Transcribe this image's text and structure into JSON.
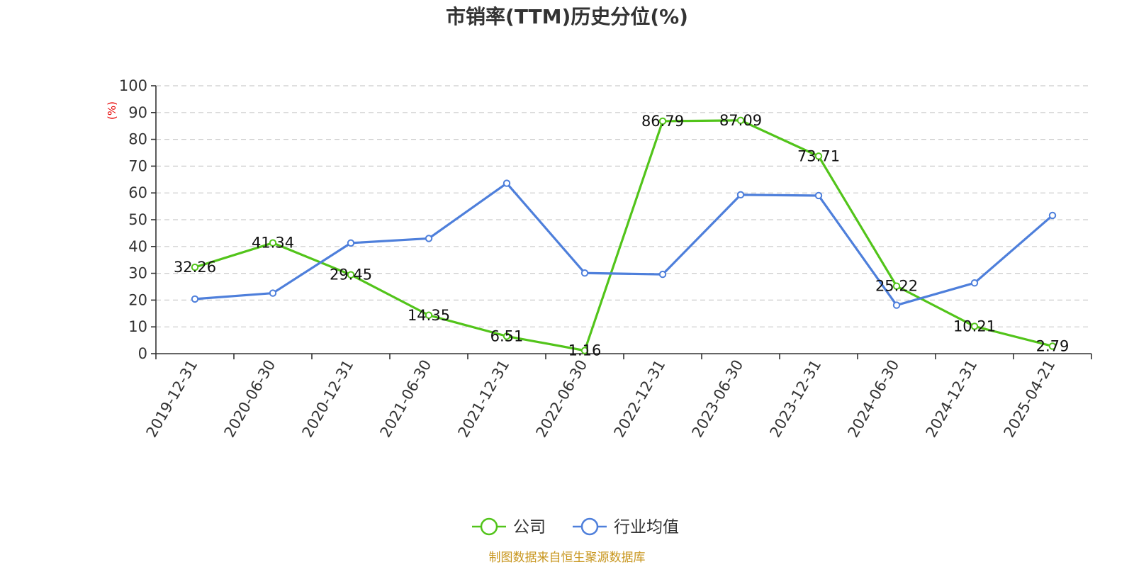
{
  "chart_data": {
    "type": "line",
    "title": "市销率(TTM)历史分位(%)",
    "ylabel": "(%)",
    "xlabel": "",
    "ylim": [
      0,
      100
    ],
    "yticks": [
      0,
      10,
      20,
      30,
      40,
      50,
      60,
      70,
      80,
      90,
      100
    ],
    "grid": true,
    "legend_position": "bottom-center",
    "categories": [
      "2019-12-31",
      "2020-06-30",
      "2020-12-31",
      "2021-06-30",
      "2021-12-31",
      "2022-06-30",
      "2022-12-31",
      "2023-06-30",
      "2023-12-31",
      "2024-06-30",
      "2024-12-31",
      "2025-04-21"
    ],
    "series": [
      {
        "name": "公司",
        "color": "#52c41a",
        "values": [
          32.26,
          41.34,
          29.45,
          14.35,
          6.51,
          1.16,
          86.79,
          87.09,
          73.71,
          25.22,
          10.21,
          2.79
        ],
        "labels": [
          "32.26",
          "41.34",
          "29.45",
          "14.35",
          "6.51",
          "1.16",
          "86.79",
          "87.09",
          "73.71",
          "25.22",
          "10.21",
          "2.79"
        ]
      },
      {
        "name": "行业均值",
        "color": "#4e7fdb",
        "values": [
          20.4,
          22.6,
          41.3,
          43.0,
          63.6,
          30.1,
          29.6,
          59.3,
          59.0,
          18.1,
          26.4,
          51.6
        ]
      }
    ]
  },
  "source": "制图数据来自恒生聚源数据库"
}
